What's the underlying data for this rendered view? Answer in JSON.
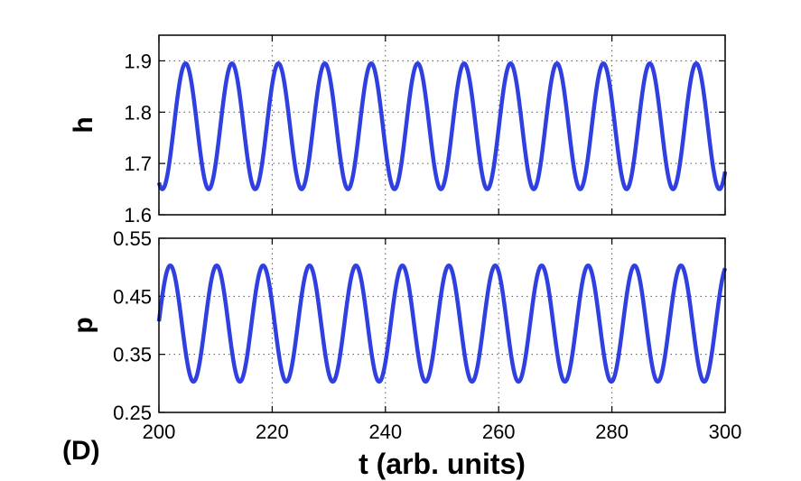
{
  "figure": {
    "panel_label": "(D)"
  },
  "chart_data": [
    {
      "type": "line",
      "ylabel": "h",
      "xlabel": "",
      "xlim": [
        200,
        300
      ],
      "ylim": [
        1.6,
        1.95
      ],
      "xticks": [
        200,
        220,
        240,
        260,
        280,
        300
      ],
      "yticks": [
        1.6,
        1.7,
        1.8,
        1.9
      ],
      "ytick_labels": [
        "1.6",
        "1.7",
        "1.8",
        "1.9"
      ],
      "grid": true,
      "line_color": "#2f3fe0",
      "oscillation": {
        "min": 1.65,
        "max": 1.895,
        "period": 8.2,
        "first_peak_t": 204.7
      }
    },
    {
      "type": "line",
      "ylabel": "p",
      "xlabel": "t (arb. units)",
      "xlim": [
        200,
        300
      ],
      "ylim": [
        0.25,
        0.55
      ],
      "xticks": [
        200,
        220,
        240,
        260,
        280,
        300
      ],
      "xtick_labels": [
        "200",
        "220",
        "240",
        "260",
        "280",
        "300"
      ],
      "yticks": [
        0.25,
        0.35,
        0.45,
        0.55
      ],
      "ytick_labels": [
        "0.25",
        "0.35",
        "0.45",
        "0.55"
      ],
      "grid": true,
      "line_color": "#2f3fe0",
      "oscillation": {
        "min": 0.303,
        "max": 0.503,
        "period": 8.2,
        "first_peak_t": 202.0
      }
    }
  ]
}
